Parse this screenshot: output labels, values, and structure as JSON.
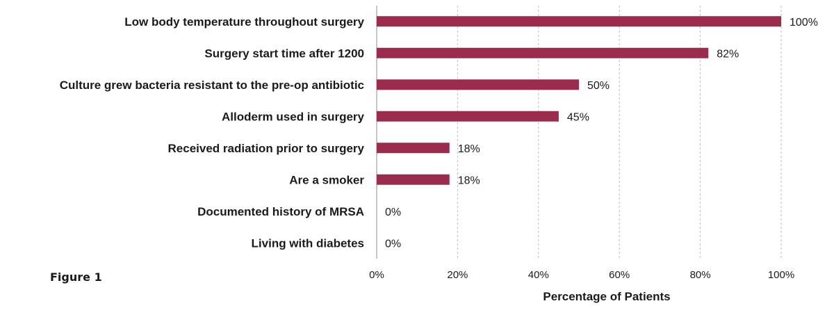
{
  "figure_label": "Figure 1",
  "chart_data": {
    "type": "bar",
    "orientation": "horizontal",
    "categories": [
      "Low body temperature throughout surgery",
      "Surgery start time after 1200",
      "Culture grew bacteria resistant to the pre-op antibiotic",
      "Alloderm used in surgery",
      "Received radiation prior to surgery",
      "Are a smoker",
      "Documented history of MRSA",
      "Living with diabetes"
    ],
    "values": [
      100,
      82,
      50,
      45,
      18,
      18,
      0,
      0
    ],
    "data_labels": [
      "100%",
      "82%",
      "50%",
      "45%",
      "18%",
      "18%",
      "0%",
      "0%"
    ],
    "xlabel": "Percentage of Patients",
    "ylabel": "",
    "xlim": [
      0,
      100
    ],
    "xticks": [
      "0%",
      "20%",
      "40%",
      "60%",
      "80%",
      "100%"
    ],
    "grid": "vertical-dashed",
    "bar_color": "#9B2C4E"
  }
}
